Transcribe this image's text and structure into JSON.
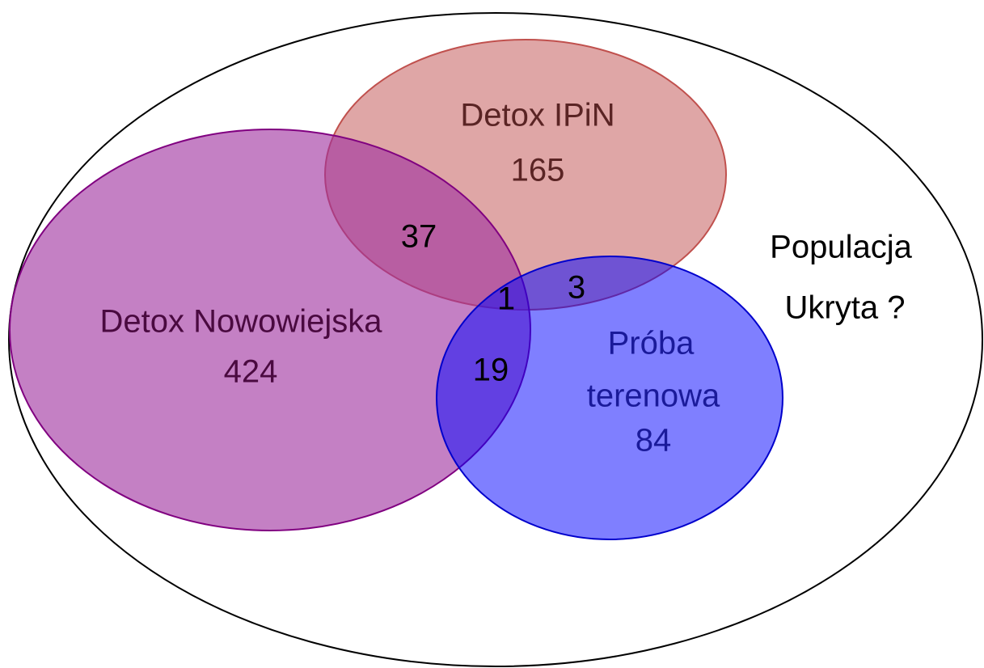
{
  "outer": {
    "label_lines": [
      "Populacja",
      "Ukryta ?"
    ]
  },
  "sets": [
    {
      "label_lines": [
        "Detox IPiN"
      ],
      "count": 165
    },
    {
      "label_lines": [
        "Detox Nowowiejska"
      ],
      "count": 424
    },
    {
      "label_lines": [
        "Próba",
        "terenowa"
      ],
      "count": 84
    }
  ],
  "intersections": [
    {
      "sets": [
        "Detox IPiN",
        "Detox Nowowiejska"
      ],
      "count": 37
    },
    {
      "sets": [
        "Detox IPiN",
        "Detox Nowowiejska",
        "Próba terenowa"
      ],
      "count": 1
    },
    {
      "sets": [
        "Detox IPiN",
        "Próba terenowa"
      ],
      "count": 3
    },
    {
      "sets": [
        "Detox Nowowiejska",
        "Próba terenowa"
      ],
      "count": 19
    }
  ]
}
